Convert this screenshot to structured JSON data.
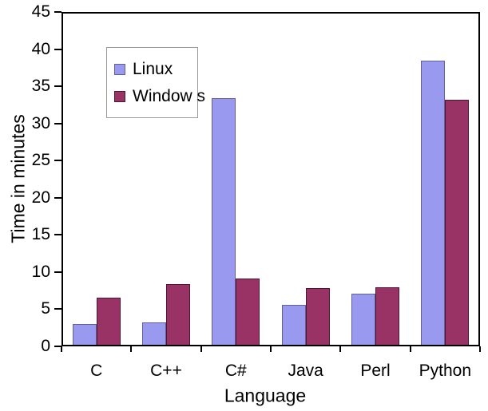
{
  "chart_data": {
    "type": "bar",
    "title": "",
    "categories": [
      "C",
      "C++",
      "C#",
      "Java",
      "Perl",
      "Python"
    ],
    "series": [
      {
        "name": "Linux",
        "color": "#9999f0",
        "border_color": "#60609a",
        "values": [
          3.0,
          3.2,
          33.4,
          5.6,
          7.1,
          38.5
        ]
      },
      {
        "name": "Window s",
        "color": "#993366",
        "border_color": "#4d1733",
        "values": [
          6.5,
          8.4,
          9.1,
          7.8,
          8.0,
          33.2
        ]
      }
    ],
    "xlabel": "Language",
    "ylabel": "Time in minutes",
    "ylim": [
      0,
      45
    ],
    "ytick_step": 5,
    "grid": false,
    "legend_position": "upper-left-inside",
    "axis_color": "#000000",
    "background_color": "#ffffff"
  }
}
